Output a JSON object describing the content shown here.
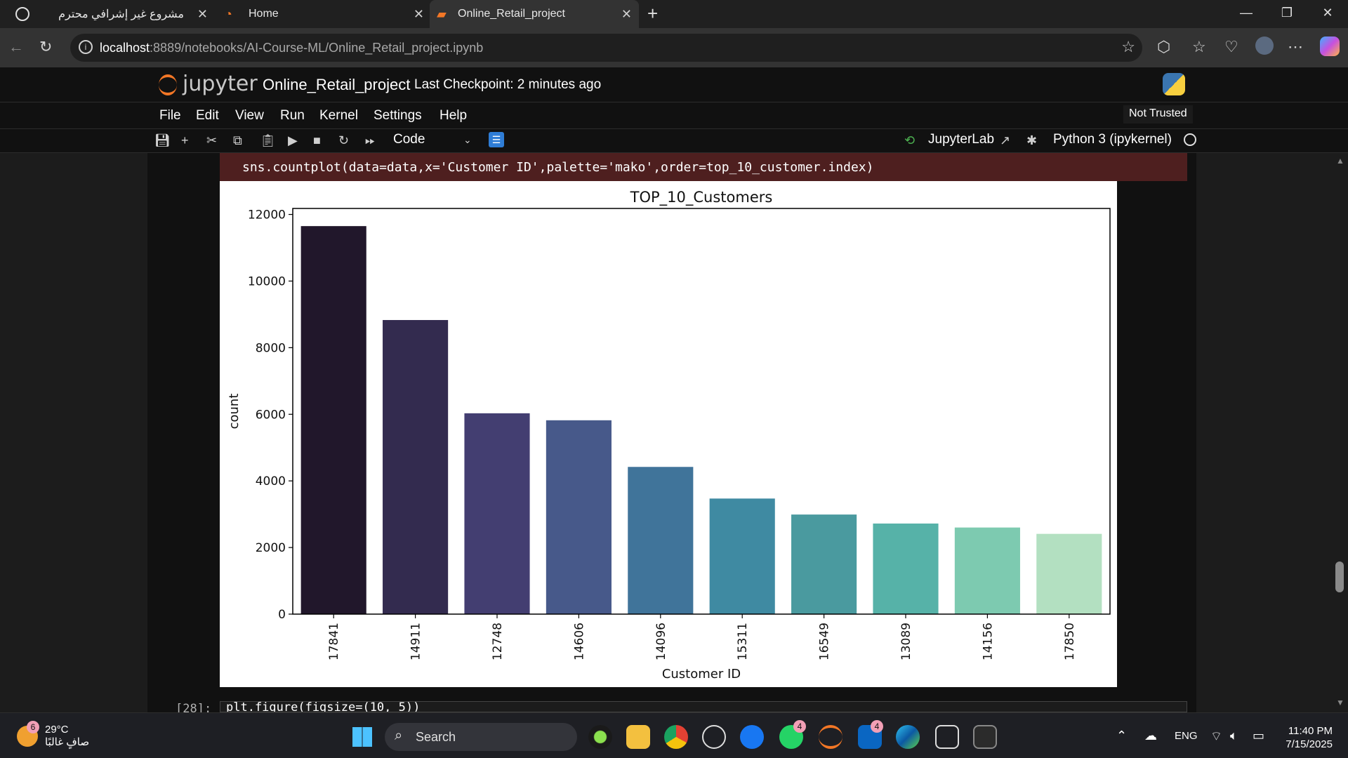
{
  "browser": {
    "tabs": [
      {
        "title": "مشروع غير إشرافي محترم",
        "active": false
      },
      {
        "title": "Home",
        "active": false
      },
      {
        "title": "Online_Retail_project",
        "active": true
      }
    ],
    "url_host": "localhost",
    "url_path": ":8889/notebooks/AI-Course-ML/Online_Retail_project.ipynb"
  },
  "jupyter": {
    "logo_text": "jupyter",
    "notebook_title": "Online_Retail_project",
    "checkpoint": "Last Checkpoint: 2 minutes ago",
    "menu": [
      "File",
      "Edit",
      "View",
      "Run",
      "Kernel",
      "Settings",
      "Help"
    ],
    "trust_status": "Not Trusted",
    "cell_type": "Code",
    "jupyterlab_label": "JupyterLab",
    "kernel": "Python 3 (ipykernel)"
  },
  "cell": {
    "code": "sns.countplot(data=data,x='Customer ID',palette='mako',order=top_10_customer.index)",
    "next_prompt": "[28]:",
    "next_code": "plt.figure(figsize=(10, 5))"
  },
  "chart_data": {
    "type": "bar",
    "title": "TOP_10_Customers",
    "xlabel": "Customer ID",
    "ylabel": "count",
    "categories": [
      "17841",
      "14911",
      "12748",
      "14606",
      "14096",
      "15311",
      "16549",
      "13089",
      "14156",
      "17850"
    ],
    "values": [
      11650,
      8830,
      6030,
      5820,
      4420,
      3470,
      2990,
      2720,
      2600,
      2410
    ],
    "ylim": [
      0,
      12180
    ],
    "yticks": [
      0,
      2000,
      4000,
      6000,
      8000,
      10000,
      12000
    ],
    "colors": [
      "#21172b",
      "#332b4f",
      "#433e71",
      "#47598a",
      "#40749a",
      "#3f8aa2",
      "#4a9a9f",
      "#56b2a8",
      "#7dcab0",
      "#b3e0c1"
    ],
    "grid": false
  },
  "taskbar": {
    "search_label": "Search",
    "weather_temp": "29°C",
    "weather_desc": "صافٍ غالبًا",
    "weather_badge": "6",
    "whatsapp_badge": "4",
    "linkedin_badge": "4",
    "language": "ENG",
    "time": "11:40 PM",
    "date": "7/15/2025"
  }
}
